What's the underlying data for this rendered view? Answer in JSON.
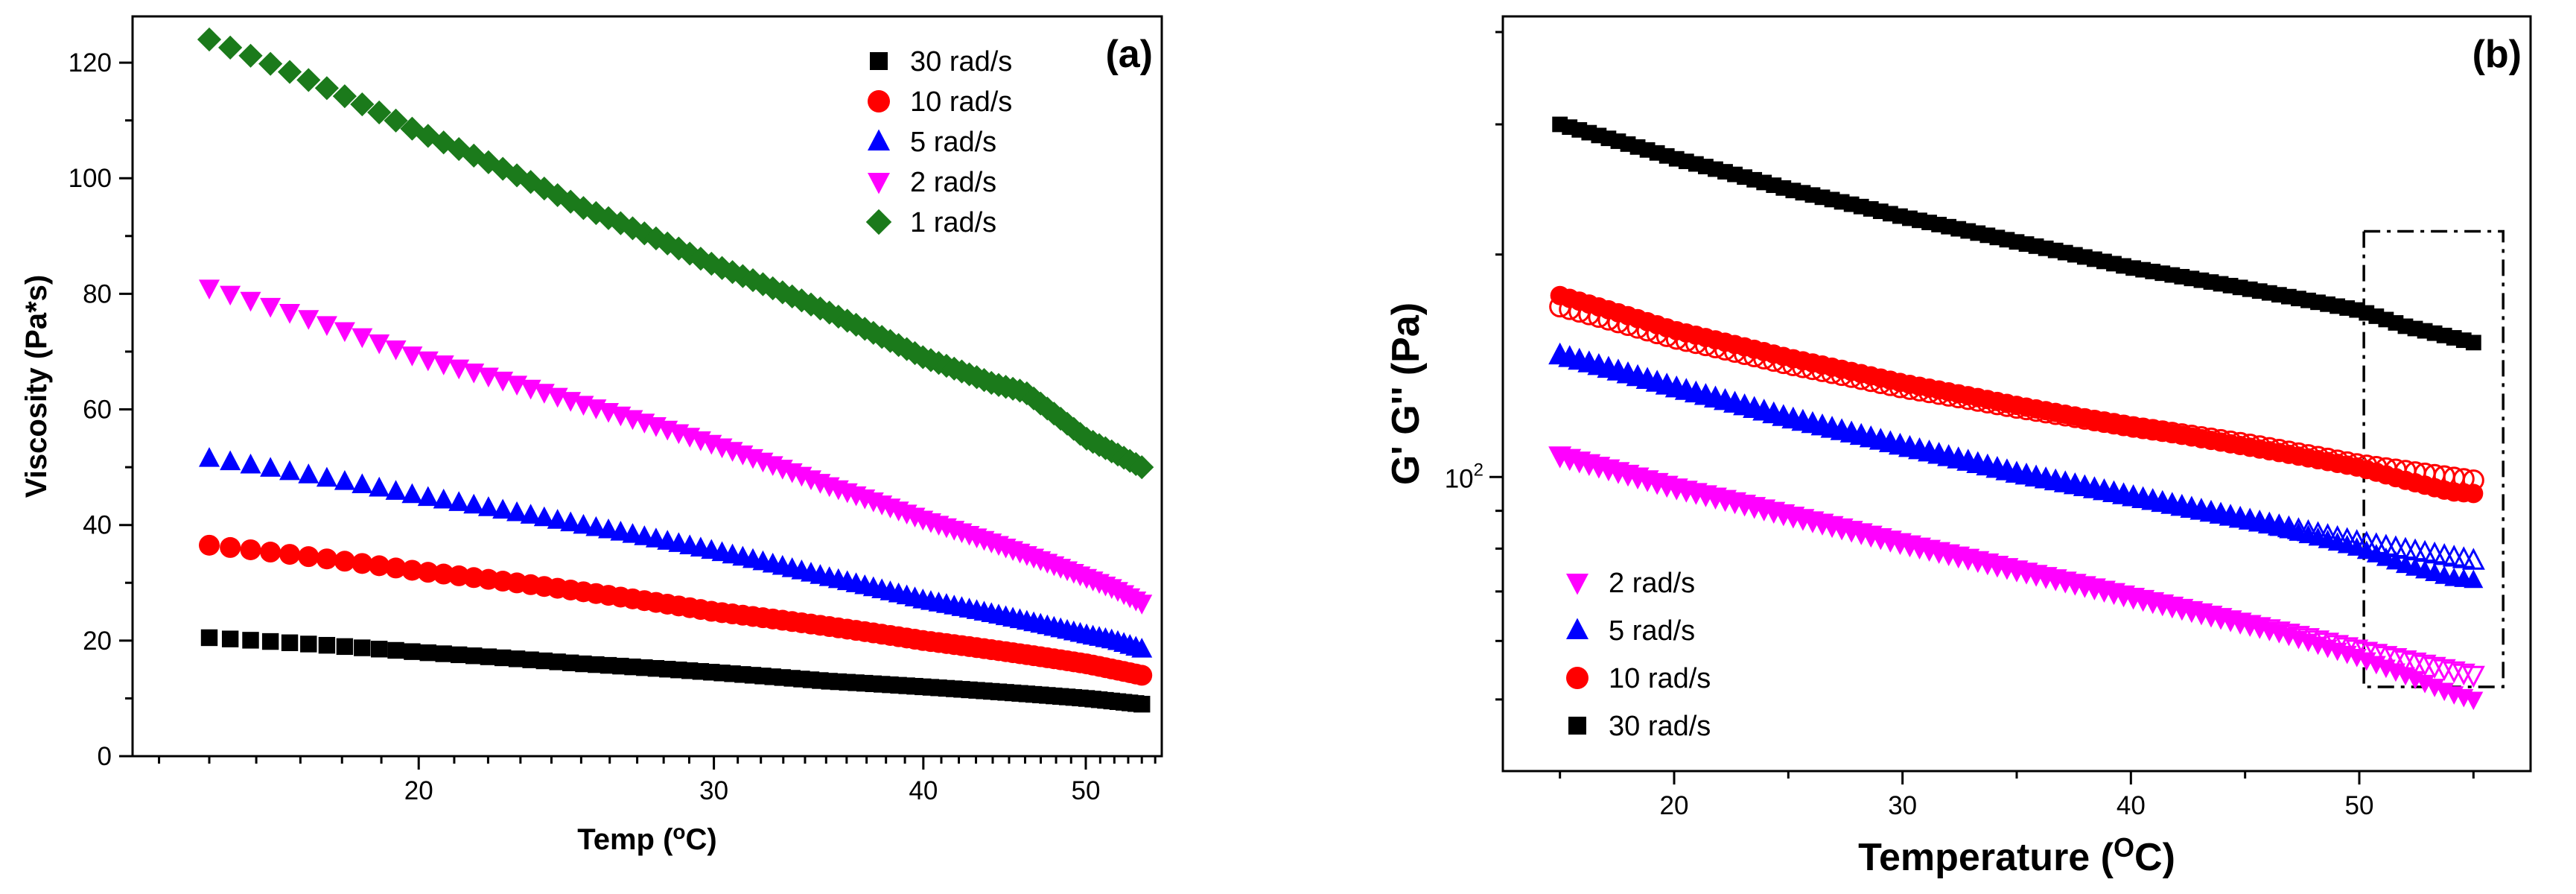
{
  "chart_data": [
    {
      "type": "scatter",
      "panel_label": "(a)",
      "xlabel": "Temp (",
      "xlabel_sup": "o",
      "xlabel_tail": "C)",
      "ylabel": "Viscosity (Pa*s)",
      "xscale": "log",
      "yscale": "linear",
      "xlim": [
        13.5,
        55.5
      ],
      "ylim": [
        0,
        128
      ],
      "xticks": [
        20,
        30,
        40,
        50
      ],
      "yticks": [
        0,
        20,
        40,
        60,
        80,
        100,
        120
      ],
      "legend_position": "top-right",
      "legend_order": [
        "30 rad/s",
        "10 rad/s",
        "5 rad/s",
        "2 rad/s",
        "1 rad/s"
      ],
      "series": [
        {
          "name": "1 rad/s",
          "marker": "diamond",
          "color": "#1b7a1b",
          "x": [
            15,
            20,
            25,
            30,
            35,
            40,
            44,
            46,
            48,
            50,
            52,
            54
          ],
          "y": [
            124,
            108,
            95,
            85,
            77,
            69,
            64.5,
            63,
            59,
            55,
            52.5,
            50
          ]
        },
        {
          "name": "2 rad/s",
          "marker": "triangle-down",
          "color": "#ff00ff",
          "x": [
            15,
            20,
            25,
            30,
            35,
            40,
            45,
            50,
            52,
            54
          ],
          "y": [
            81,
            69,
            61,
            54,
            47,
            41,
            36,
            31,
            29,
            26.5
          ]
        },
        {
          "name": "5 rad/s",
          "marker": "triangle-up",
          "color": "#0000ff",
          "x": [
            15,
            20,
            25,
            30,
            35,
            40,
            45,
            50,
            52,
            54
          ],
          "y": [
            51.5,
            45,
            40,
            35.5,
            31,
            27,
            24,
            21,
            20,
            18.5
          ]
        },
        {
          "name": "10 rad/s",
          "marker": "circle",
          "color": "#ff0000",
          "x": [
            15,
            20,
            25,
            30,
            35,
            40,
            45,
            50,
            52,
            54
          ],
          "y": [
            36.5,
            32,
            28.5,
            25,
            22.5,
            20,
            18,
            16,
            15,
            14
          ]
        },
        {
          "name": "30 rad/s",
          "marker": "square",
          "color": "#000000",
          "x": [
            15,
            20,
            25,
            30,
            35,
            40,
            45,
            50,
            54
          ],
          "y": [
            20.5,
            18,
            16,
            14.5,
            13,
            12,
            11,
            10,
            9
          ]
        }
      ]
    },
    {
      "type": "scatter",
      "panel_label": "(b)",
      "xlabel": "Temperature (",
      "xlabel_sup": "O",
      "xlabel_tail": "C)",
      "ylabel": "G'  G'' (Pa)",
      "xscale": "linear",
      "yscale": "log",
      "xlim": [
        12.5,
        57.5
      ],
      "ylim": [
        40,
        420
      ],
      "xticks": [
        20,
        30,
        40,
        50
      ],
      "yticks": [
        100
      ],
      "ytick_label_base": "10",
      "ytick_label_exp": "2",
      "legend_position": "bottom-left",
      "legend_order": [
        "2 rad/s",
        "5 rad/s",
        "10 rad/s",
        "30 rad/s"
      ],
      "annotation": {
        "type": "dash-dot-rectangle",
        "x": [
          50.2,
          56.3
        ],
        "y": [
          52,
          215
        ]
      },
      "series": [
        {
          "name": "30 rad/s",
          "marker": "square",
          "color": "#000000",
          "fill": "filled",
          "x": [
            15,
            20,
            25,
            30,
            35,
            40,
            45,
            50,
            52,
            55
          ],
          "y": [
            300,
            270,
            245,
            225,
            208,
            192,
            180,
            168,
            160,
            152
          ]
        },
        {
          "name": "",
          "marker": "circle",
          "color": "#ff0000",
          "fill": "open",
          "x": [
            15,
            20,
            25,
            30,
            35,
            40,
            45,
            50,
            55
          ],
          "y": [
            170,
            154,
            142,
            132,
            124,
            117,
            111,
            104,
            99
          ]
        },
        {
          "name": "10 rad/s",
          "marker": "circle",
          "color": "#ff0000",
          "fill": "filled",
          "x": [
            15,
            20,
            25,
            30,
            35,
            40,
            45,
            50,
            52,
            54,
            55
          ],
          "y": [
            176,
            158,
            145,
            134,
            125,
            117,
            110,
            103,
            99,
            95.5,
            95
          ]
        },
        {
          "name": "",
          "marker": "triangle-up",
          "color": "#0000ff",
          "fill": "open",
          "x": [
            15,
            20,
            25,
            30,
            35,
            40,
            45,
            50,
            55
          ],
          "y": [
            146,
            132,
            120,
            110,
            101,
            94,
            87.5,
            81.5,
            77
          ]
        },
        {
          "name": "5 rad/s",
          "marker": "triangle-up",
          "color": "#0000ff",
          "fill": "filled",
          "x": [
            15,
            20,
            25,
            30,
            35,
            40,
            45,
            50,
            52,
            54,
            55
          ],
          "y": [
            146,
            132,
            120,
            110,
            101,
            94,
            87.5,
            80,
            76,
            73,
            72.5
          ]
        },
        {
          "name": "",
          "marker": "triangle-down",
          "color": "#ff00ff",
          "fill": "open",
          "x": [
            15,
            20,
            25,
            30,
            35,
            40,
            45,
            50,
            55
          ],
          "y": [
            107,
            97,
            89,
            81.5,
            75,
            69,
            63.5,
            58.5,
            54
          ]
        },
        {
          "name": "2 rad/s",
          "marker": "triangle-down",
          "color": "#ff00ff",
          "fill": "filled",
          "x": [
            15,
            20,
            25,
            30,
            35,
            40,
            45,
            50,
            52,
            54,
            55
          ],
          "y": [
            107,
            97,
            89,
            81.5,
            75,
            69,
            63.5,
            57,
            54,
            51,
            50
          ]
        }
      ]
    }
  ]
}
